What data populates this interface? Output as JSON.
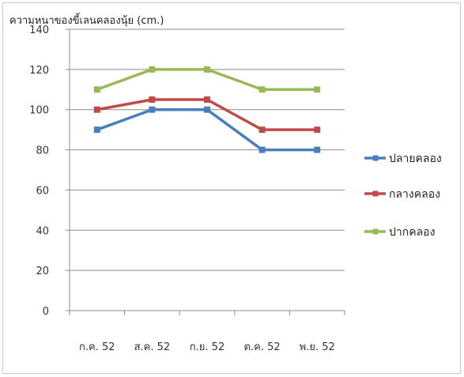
{
  "chart_data": {
    "type": "line",
    "title": "ความหนาของขี้เลนคลองนุ้ย (cm.)",
    "categories": [
      "ก.ค. 52",
      "ส.ค. 52",
      "ก.ย. 52",
      "ต.ค. 52",
      "พ.ย. 52"
    ],
    "ylim": [
      0,
      140
    ],
    "yticks": [
      0,
      20,
      40,
      60,
      80,
      100,
      120,
      140
    ],
    "grid": true,
    "legend_position": "right",
    "series": [
      {
        "name": "ปลายคลอง",
        "color": "#4a7ebb",
        "values": [
          90,
          100,
          100,
          80,
          80
        ]
      },
      {
        "name": "กลางคลอง",
        "color": "#be4b48",
        "values": [
          100,
          105,
          105,
          90,
          90
        ]
      },
      {
        "name": "ปากคลอง",
        "color": "#98b954",
        "values": [
          110,
          120,
          120,
          110,
          110
        ]
      }
    ]
  }
}
